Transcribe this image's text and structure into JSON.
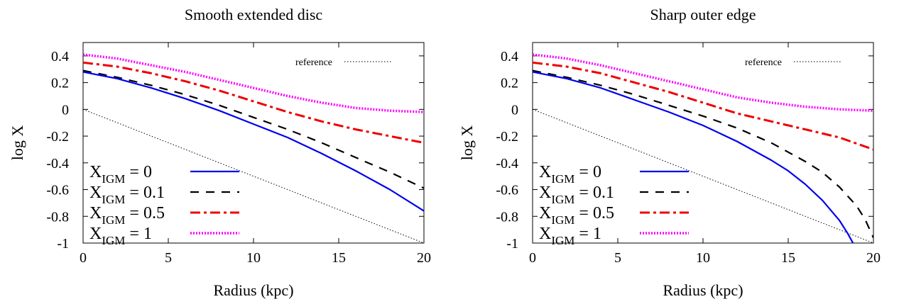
{
  "chart_data": [
    {
      "type": "line",
      "title": "Smooth extended disc",
      "xlabel": "Radius (kpc)",
      "ylabel": "log X",
      "xlim": [
        0,
        20
      ],
      "ylim": [
        -1,
        0.5
      ],
      "xticks": [
        "0",
        "5",
        "10",
        "15",
        "20"
      ],
      "yticks": [
        "0.4",
        "0.2",
        "0",
        "-0.2",
        "-0.4",
        "-0.6",
        "-0.8",
        "-1"
      ],
      "grid": false,
      "legend_position": "bottom-left",
      "reference_label": "reference",
      "series": [
        {
          "name": "X",
          "sub": "IGM",
          "eq": " = 0",
          "color": "#0000ee",
          "style": "solid",
          "x": [
            0,
            2,
            4,
            6,
            8,
            10,
            12,
            14,
            16,
            18,
            20
          ],
          "y": [
            0.28,
            0.23,
            0.16,
            0.08,
            -0.01,
            -0.11,
            -0.21,
            -0.33,
            -0.46,
            -0.6,
            -0.76
          ]
        },
        {
          "name": "X",
          "sub": "IGM",
          "eq": " = 0.1",
          "color": "#000000",
          "style": "dashed",
          "x": [
            0,
            2,
            4,
            6,
            8,
            10,
            12,
            14,
            16,
            18,
            20
          ],
          "y": [
            0.29,
            0.24,
            0.18,
            0.11,
            0.03,
            -0.06,
            -0.15,
            -0.25,
            -0.36,
            -0.47,
            -0.59
          ]
        },
        {
          "name": "X",
          "sub": "IGM",
          "eq": " = 0.5",
          "color": "#ee0000",
          "style": "dashdot",
          "x": [
            0,
            2,
            4,
            6,
            8,
            10,
            12,
            14,
            16,
            18,
            20
          ],
          "y": [
            0.35,
            0.32,
            0.27,
            0.21,
            0.14,
            0.06,
            -0.02,
            -0.09,
            -0.15,
            -0.2,
            -0.25
          ]
        },
        {
          "name": "X",
          "sub": "IGM",
          "eq": " = 1",
          "color": "#ff00ff",
          "style": "dotted",
          "x": [
            0,
            2,
            4,
            6,
            8,
            10,
            12,
            14,
            16,
            18,
            20
          ],
          "y": [
            0.41,
            0.38,
            0.33,
            0.28,
            0.22,
            0.16,
            0.1,
            0.05,
            0.01,
            -0.01,
            -0.02
          ]
        },
        {
          "name": "reference",
          "color": "#000000",
          "style": "thin-dotted",
          "x": [
            0,
            20
          ],
          "y": [
            0,
            -1
          ]
        }
      ]
    },
    {
      "type": "line",
      "title": "Sharp outer edge",
      "xlabel": "Radius (kpc)",
      "ylabel": "log X",
      "xlim": [
        0,
        20
      ],
      "ylim": [
        -1,
        0.5
      ],
      "xticks": [
        "0",
        "5",
        "10",
        "15",
        "20"
      ],
      "yticks": [
        "0.4",
        "0.2",
        "0",
        "-0.2",
        "-0.4",
        "-0.6",
        "-0.8",
        "-1"
      ],
      "grid": false,
      "legend_position": "bottom-left",
      "reference_label": "reference",
      "series": [
        {
          "name": "X",
          "sub": "IGM",
          "eq": " = 0",
          "color": "#0000ee",
          "style": "solid",
          "x": [
            0,
            2,
            4,
            6,
            8,
            10,
            12,
            14,
            15,
            16,
            17,
            18,
            18.5,
            18.8
          ],
          "y": [
            0.28,
            0.23,
            0.16,
            0.07,
            -0.02,
            -0.12,
            -0.24,
            -0.38,
            -0.46,
            -0.56,
            -0.68,
            -0.83,
            -0.93,
            -1.0
          ]
        },
        {
          "name": "X",
          "sub": "IGM",
          "eq": " = 0.1",
          "color": "#000000",
          "style": "dashed",
          "x": [
            0,
            2,
            4,
            6,
            8,
            10,
            12,
            14,
            16,
            17,
            18,
            19,
            19.5,
            20
          ],
          "y": [
            0.29,
            0.24,
            0.18,
            0.11,
            0.03,
            -0.05,
            -0.14,
            -0.25,
            -0.39,
            -0.47,
            -0.58,
            -0.72,
            -0.82,
            -0.96
          ]
        },
        {
          "name": "X",
          "sub": "IGM",
          "eq": " = 0.5",
          "color": "#ee0000",
          "style": "dashdot",
          "x": [
            0,
            2,
            4,
            6,
            8,
            10,
            12,
            14,
            16,
            18,
            20
          ],
          "y": [
            0.35,
            0.32,
            0.27,
            0.2,
            0.13,
            0.05,
            -0.03,
            -0.09,
            -0.15,
            -0.21,
            -0.3
          ]
        },
        {
          "name": "X",
          "sub": "IGM",
          "eq": " = 1",
          "color": "#ff00ff",
          "style": "dotted",
          "x": [
            0,
            2,
            4,
            6,
            8,
            10,
            12,
            14,
            16,
            18,
            20
          ],
          "y": [
            0.41,
            0.38,
            0.33,
            0.27,
            0.21,
            0.15,
            0.09,
            0.05,
            0.02,
            0.0,
            -0.01
          ]
        },
        {
          "name": "reference",
          "color": "#000000",
          "style": "thin-dotted",
          "x": [
            0,
            20
          ],
          "y": [
            0,
            -1
          ]
        }
      ]
    }
  ]
}
